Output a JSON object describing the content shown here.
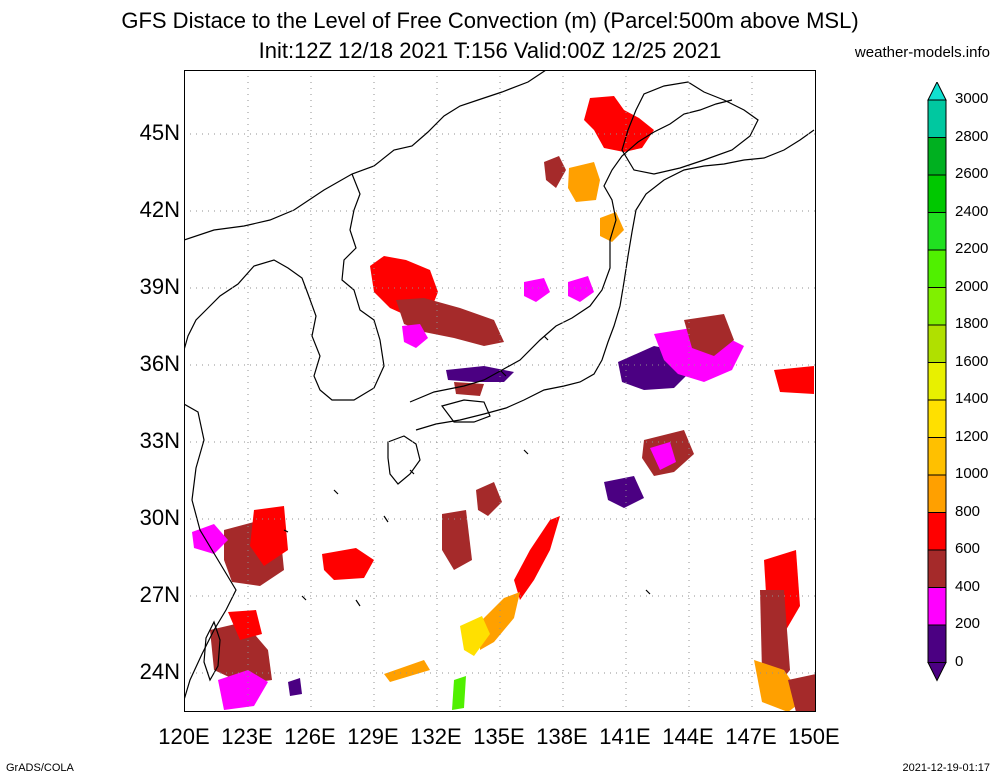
{
  "title_line1": "GFS Distace to the Level of Free Convection (m) (Parcel:500m above MSL)",
  "title_line2": "Init:12Z 12/18 2021 T:156 Valid:00Z 12/25 2021",
  "site": "weather-models.info",
  "footer_left": "GrADS/COLA",
  "footer_right": "2021-12-19-01:17",
  "lat_labels": [
    "45N",
    "42N",
    "39N",
    "36N",
    "33N",
    "30N",
    "27N",
    "24N"
  ],
  "lon_labels": [
    "120E",
    "123E",
    "126E",
    "129E",
    "132E",
    "135E",
    "138E",
    "141E",
    "144E",
    "147E",
    "150E"
  ],
  "colorbar": {
    "labels": [
      "3000",
      "2800",
      "2600",
      "2400",
      "2200",
      "2000",
      "1800",
      "1600",
      "1400",
      "1200",
      "1000",
      "800",
      "600",
      "400",
      "200",
      "0"
    ],
    "colors": [
      "#10e0d0",
      "#00c8a0",
      "#00b020",
      "#00c800",
      "#20e020",
      "#50f000",
      "#80f000",
      "#b0e000",
      "#e8f000",
      "#ffe000",
      "#ffc000",
      "#ffa000",
      "#ff0000",
      "#a52a2a",
      "#ff00ff",
      "#4b0082"
    ]
  },
  "palette": {
    "indigo": "#4b0082",
    "magenta": "#ff00ff",
    "brown": "#a52a2a",
    "red": "#ff0000",
    "orange": "#ffa000",
    "gold": "#ffc000",
    "yellow": "#ffe000",
    "green": "#50f000"
  }
}
